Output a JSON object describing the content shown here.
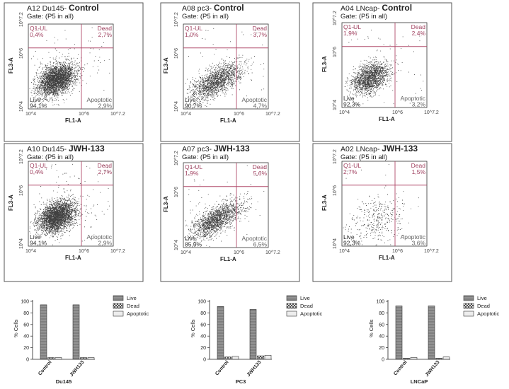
{
  "colors": {
    "dot": "#1e1e1e",
    "gate_line": "#b04a6a",
    "dead_label": "#a0405f",
    "q1_label": "#a0405f",
    "live_label": "#333333",
    "apoptotic_label": "#666666",
    "frame": "#555555",
    "bar_dark": "#7f7f7f",
    "bar_light": "#ededed"
  },
  "chart_data": [
    {
      "type": "scatter",
      "sample": "A12 Du145-",
      "condition": "Control",
      "gate": "Gate: (P5 in all)",
      "xlabel": "FL1-A",
      "ylabel": "FL3-A",
      "axis_ticks": [
        "10^4",
        "10^6",
        "10^7.2"
      ],
      "xlim": [
        4,
        7.2
      ],
      "ylim": [
        4,
        7.2
      ],
      "quadrants": {
        "ul": "Q1-UL",
        "ul_pct": "0,4%",
        "ur": "Dead",
        "ur_pct": "2,7%",
        "ll": "Live",
        "ll_pct": "94,1%",
        "lr": "Apoptotic",
        "lr_pct": "2,9%"
      },
      "percentages": {
        "q1_ul": 0.4,
        "dead": 2.7,
        "live": 94.1,
        "apoptotic": 2.9
      },
      "cloud": {
        "density": "high",
        "shape": "compact"
      }
    },
    {
      "type": "scatter",
      "sample": "A08 pc3-",
      "condition": "Control",
      "gate": "Gate: (P5 in all)",
      "xlabel": "FL1-A",
      "ylabel": "FL3-A",
      "axis_ticks": [
        "10^4",
        "10^6",
        "10^7.2"
      ],
      "xlim": [
        4,
        7.2
      ],
      "ylim": [
        4,
        7.2
      ],
      "quadrants": {
        "ul": "Q1-UL",
        "ul_pct": "1,0%",
        "ur": "Dead",
        "ur_pct": "3,7%",
        "ll": "Live",
        "ll_pct": "90,7%",
        "lr": "Apoptotic",
        "lr_pct": "4,7%"
      },
      "percentages": {
        "q1_ul": 1.0,
        "dead": 3.7,
        "live": 90.7,
        "apoptotic": 4.7
      },
      "cloud": {
        "density": "medium",
        "shape": "elongated"
      }
    },
    {
      "type": "scatter",
      "sample": "A04 LNcap-",
      "condition": "Control",
      "gate": "Gate: (P5 in all)",
      "xlabel": "FL1-A",
      "ylabel": "FL3-A",
      "axis_ticks": [
        "10^4",
        "10^6",
        "10^7.2"
      ],
      "xlim": [
        4,
        7.2
      ],
      "ylim": [
        4,
        7.2
      ],
      "quadrants": {
        "ul": "Q1-UL",
        "ul_pct": "1,9%",
        "ur": "Dead",
        "ur_pct": "2,4%",
        "ll": "Live",
        "ll_pct": "92,3%",
        "lr": "Apoptotic",
        "lr_pct": "3,2%"
      },
      "percentages": {
        "q1_ul": 1.9,
        "dead": 2.4,
        "live": 92.3,
        "apoptotic": 3.2
      },
      "cloud": {
        "density": "medium",
        "shape": "compact"
      }
    },
    {
      "type": "scatter",
      "sample": "A10 Du145-",
      "condition": "JWH-133",
      "gate": "Gate: (P5 in all)",
      "xlabel": "FL1-A",
      "ylabel": "FL3-A",
      "axis_ticks": [
        "10^4",
        "10^6",
        "10^7.2"
      ],
      "xlim": [
        4,
        7.2
      ],
      "ylim": [
        4,
        7.2
      ],
      "quadrants": {
        "ul": "Q1-UL",
        "ul_pct": "0,4%",
        "ur": "Dead",
        "ur_pct": "2,7%",
        "ll": "Live",
        "ll_pct": "94,1%",
        "lr": "Apoptotic",
        "lr_pct": "2,9%"
      },
      "percentages": {
        "q1_ul": 0.4,
        "dead": 2.7,
        "live": 94.1,
        "apoptotic": 2.9
      },
      "cloud": {
        "density": "high",
        "shape": "compact"
      }
    },
    {
      "type": "scatter",
      "sample": "A07 pc3-",
      "condition": "JWH-133",
      "gate": "Gate: (P5 in all)",
      "xlabel": "FL1-A",
      "ylabel": "FL3-A",
      "axis_ticks": [
        "10^4",
        "10^6",
        "10^7.2"
      ],
      "xlim": [
        4,
        7.2
      ],
      "ylim": [
        4,
        7.2
      ],
      "quadrants": {
        "ul": "Q1-UL",
        "ul_pct": "1,9%",
        "ur": "Dead",
        "ur_pct": "5,6%",
        "ll": "Live",
        "ll_pct": "85,9%",
        "lr": "Apoptotic",
        "lr_pct": "6,5%"
      },
      "percentages": {
        "q1_ul": 1.9,
        "dead": 5.6,
        "live": 85.9,
        "apoptotic": 6.5
      },
      "cloud": {
        "density": "medium",
        "shape": "elongated"
      }
    },
    {
      "type": "scatter",
      "sample": "A02 LNcap-",
      "condition": "JWH-133",
      "gate": "Gate: (P5 in all)",
      "xlabel": "FL1-A",
      "ylabel": "FL3-A",
      "axis_ticks": [
        "10^4",
        "10^6",
        "10^7.2"
      ],
      "xlim": [
        4,
        7.2
      ],
      "ylim": [
        4,
        7.2
      ],
      "quadrants": {
        "ul": "Q1-UL",
        "ul_pct": "2,7%",
        "ur": "Dead",
        "ur_pct": "1,5%",
        "ll": "Live",
        "ll_pct": "92,3%",
        "lr": "Apoptotic",
        "lr_pct": "3,6%"
      },
      "percentages": {
        "q1_ul": 2.7,
        "dead": 1.5,
        "live": 92.3,
        "apoptotic": 3.6
      },
      "cloud": {
        "density": "sparse",
        "shape": "diffuse"
      }
    },
    {
      "type": "bar",
      "xlabel": "Du145",
      "ylabel": "% Cells",
      "ylim": [
        0,
        100
      ],
      "yticks": [
        0,
        20,
        40,
        60,
        80,
        100
      ],
      "categories": [
        "Control",
        "JWH133"
      ],
      "series": [
        {
          "name": "Live",
          "values": [
            94,
            94
          ]
        },
        {
          "name": "Dead",
          "values": [
            3,
            3
          ]
        },
        {
          "name": "Apoptotic",
          "values": [
            3,
            3
          ]
        }
      ],
      "legend": "right"
    },
    {
      "type": "bar",
      "xlabel": "PC3",
      "ylabel": "% Cells",
      "ylim": [
        0,
        100
      ],
      "yticks": [
        0,
        20,
        40,
        60,
        80,
        100
      ],
      "categories": [
        "Control",
        "JWH133"
      ],
      "series": [
        {
          "name": "Live",
          "values": [
            91,
            86
          ]
        },
        {
          "name": "Dead",
          "values": [
            4,
            6
          ]
        },
        {
          "name": "Apoptotic",
          "values": [
            5,
            7
          ]
        }
      ],
      "legend": "right"
    },
    {
      "type": "bar",
      "xlabel": "LNCaP",
      "ylabel": "% Cells",
      "ylim": [
        0,
        100
      ],
      "yticks": [
        0,
        20,
        40,
        60,
        80,
        100
      ],
      "categories": [
        "Control",
        "JWH133"
      ],
      "series": [
        {
          "name": "Live",
          "values": [
            92,
            92
          ]
        },
        {
          "name": "Dead",
          "values": [
            2,
            2
          ]
        },
        {
          "name": "Apoptotic",
          "values": [
            3,
            4
          ]
        }
      ],
      "legend": "right"
    }
  ]
}
